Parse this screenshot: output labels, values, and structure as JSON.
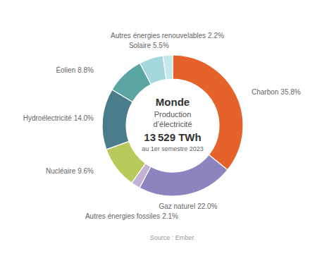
{
  "chart_data": {
    "type": "donut",
    "title": "Monde",
    "annotations": [
      "Production",
      "d’électricité",
      "13 529 TWh",
      "au 1er semestre 2023",
      "Source : Ember."
    ],
    "categories": [
      "Charbon",
      "Gaz naturel",
      "Autres énergies fossiles",
      "Nucléaire",
      "Hydroélectricité",
      "Éolien",
      "Solaire",
      "Autres énergies renouvelables"
    ],
    "values": [
      35.8,
      22.0,
      2.1,
      9.6,
      14.0,
      8.8,
      5.5,
      2.2
    ],
    "value_labels": [
      "35.8%",
      "22.0%",
      "2.1%",
      "9.6%",
      "14.0%",
      "8.8%",
      "5.5%",
      "2.2%"
    ],
    "colors": [
      "#E5622A",
      "#8B84BE",
      "#C4B2D5",
      "#BAC95C",
      "#4A7C8A",
      "#5BA5A2",
      "#A5D8DC",
      "#C5E8EB"
    ],
    "data_labels": true
  }
}
